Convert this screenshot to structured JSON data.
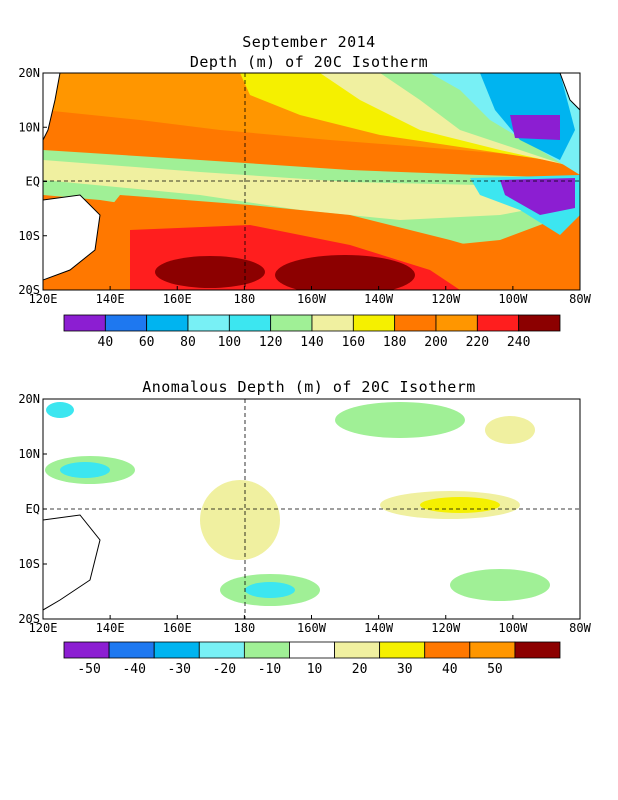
{
  "chart_data": [
    {
      "type": "heatmap",
      "title": "September 2014",
      "subtitle": "Depth (m) of 20C Isotherm",
      "x_ticks": [
        "120E",
        "140E",
        "160E",
        "180",
        "160W",
        "140W",
        "120W",
        "100W",
        "80W"
      ],
      "y_ticks": [
        "20N",
        "10N",
        "EQ",
        "10S",
        "20S"
      ],
      "colorbar": {
        "labels": [
          "40",
          "60",
          "80",
          "100",
          "120",
          "140",
          "160",
          "180",
          "200",
          "220",
          "240"
        ],
        "colors": [
          "#8c1ed2",
          "#1e78f0",
          "#00b4f0",
          "#78f0f5",
          "#3ce6f0",
          "#a0f096",
          "#f0f0a0",
          "#f5f000",
          "#ff7800",
          "#ff9600",
          "#ff1e1e",
          "#8c0000"
        ]
      },
      "zonal_profile_m": [
        {
          "lat": 20,
          "depth": [
            170,
            190,
            200,
            200,
            190,
            170,
            140,
            110,
            90
          ]
        },
        {
          "lat": 10,
          "depth": [
            150,
            170,
            180,
            170,
            150,
            130,
            110,
            90,
            70
          ]
        },
        {
          "lat": 0,
          "depth": [
            140,
            160,
            160,
            160,
            140,
            120,
            90,
            60,
            50
          ]
        },
        {
          "lat": -10,
          "depth": [
            150,
            190,
            210,
            210,
            200,
            160,
            120,
            90,
            70
          ]
        },
        {
          "lat": -20,
          "depth": [
            190,
            230,
            250,
            250,
            250,
            210,
            150,
            110,
            90
          ]
        }
      ]
    },
    {
      "type": "heatmap",
      "title": "Anomalous Depth (m) of 20C Isotherm",
      "x_ticks": [
        "120E",
        "140E",
        "160E",
        "180",
        "160W",
        "140W",
        "120W",
        "100W",
        "80W"
      ],
      "y_ticks": [
        "20N",
        "10N",
        "EQ",
        "10S",
        "20S"
      ],
      "colorbar": {
        "labels": [
          "-50",
          "-40",
          "-30",
          "-20",
          "-10",
          "10",
          "20",
          "30",
          "40",
          "50"
        ],
        "colors": [
          "#8c1ed2",
          "#1e78f0",
          "#00b4f0",
          "#78f0f5",
          "#a0f096",
          "#ffffff",
          "#f0f0a0",
          "#f5f000",
          "#ff7800",
          "#ff9600",
          "#8c0000"
        ]
      },
      "anomaly_regions_m": [
        {
          "lon": "120E-130E",
          "lat": "5N-10N",
          "value": -30
        },
        {
          "lon": "140E",
          "lat": "20N",
          "value": -20
        },
        {
          "lon": "180",
          "lat": "EQ-15S",
          "value": 10
        },
        {
          "lon": "140W-120W",
          "lat": "EQ",
          "value": 20
        },
        {
          "lon": "180-160W",
          "lat": "15S",
          "value": -20
        },
        {
          "lon": "100W",
          "lat": "15N",
          "value": 20
        }
      ]
    }
  ]
}
